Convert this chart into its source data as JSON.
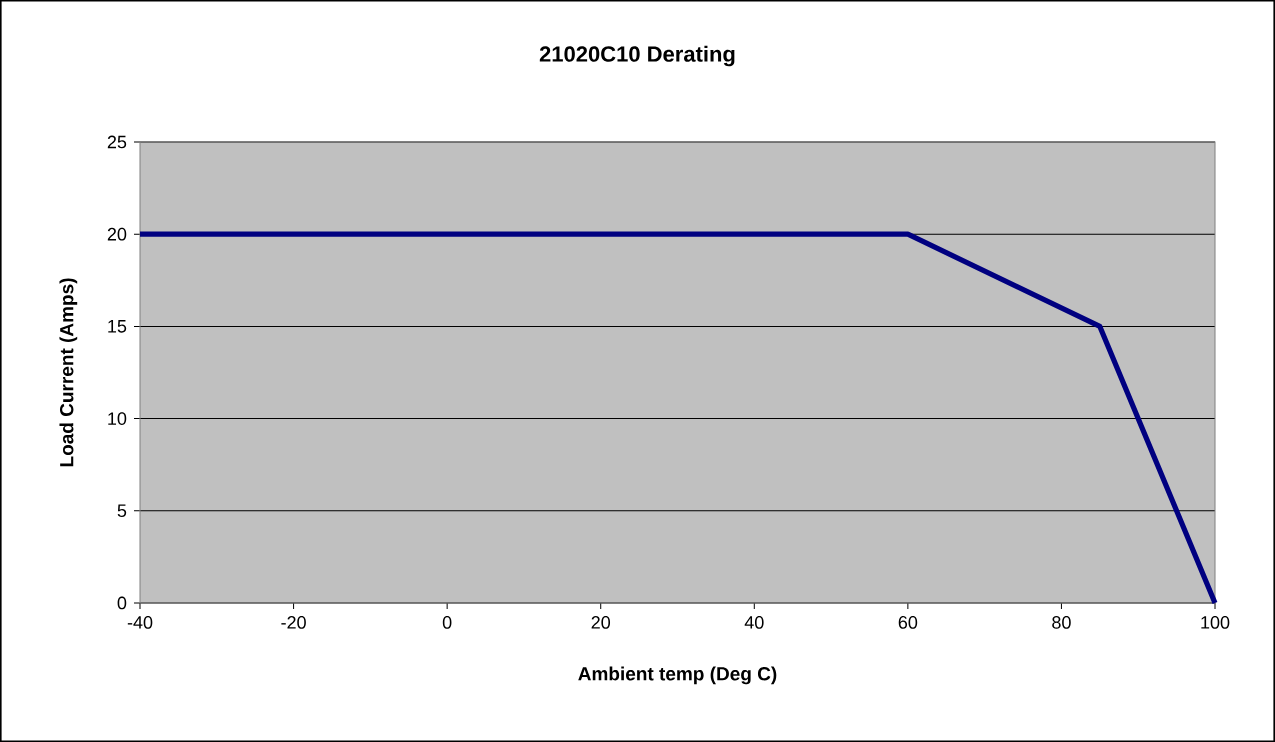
{
  "chart_data": {
    "type": "line",
    "title": "21020C10 Derating",
    "xlabel": "Ambient temp (Deg C)",
    "ylabel": "Load Current (Amps)",
    "x": [
      -40,
      60,
      85,
      100
    ],
    "series": [
      {
        "color": "#000080",
        "values": [
          20,
          20,
          15,
          0
        ]
      }
    ],
    "xlim": [
      -40,
      100
    ],
    "xticks": [
      -40,
      -20,
      0,
      20,
      40,
      60,
      80,
      100
    ],
    "ylim": [
      0,
      25
    ],
    "yticks": [
      0,
      5,
      10,
      15,
      20,
      25
    ],
    "grid": "y",
    "marker": "none",
    "line_style": "solid"
  }
}
